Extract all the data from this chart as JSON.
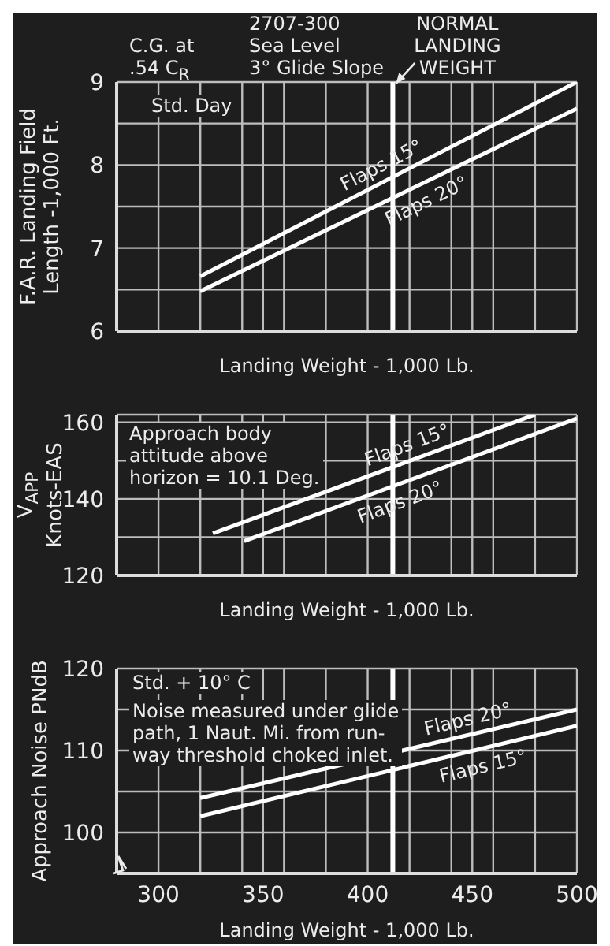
{
  "chart_data": [
    {
      "type": "line",
      "title": "2707-300\nSea Level\n3° Glide Slope",
      "xlabel": "Landing Weight - 1,000 Lb.",
      "ylabel": "F.A.R. Landing Field\nLength -1,000 Ft.",
      "annotations": [
        "C.G. at\n.54 C$_{R}$",
        "Std. Day"
      ],
      "xlim": [
        280,
        500
      ],
      "ylim": [
        6,
        9
      ],
      "xticks": [
        300,
        320,
        340,
        350,
        360,
        380,
        400,
        420,
        440,
        450,
        460,
        480,
        500
      ],
      "yticks": [
        6,
        {
          "value": 6.5,
          "label": null
        },
        7,
        {
          "value": 7.5,
          "label": null
        },
        8,
        {
          "value": 8.5,
          "label": null
        },
        9
      ],
      "tick_labels": "y",
      "grid": true,
      "legend": false,
      "ref_lines": [
        {
          "axis": "x",
          "value": 412,
          "label": "NORMAL\nLANDING\nWEIGHT",
          "color": "#ffffff"
        }
      ],
      "series": [
        {
          "name": "Flaps 15°",
          "color": "#ffffff",
          "x": [
            320,
            500
          ],
          "values": [
            6.66,
            9.0
          ]
        },
        {
          "name": "Flaps 20°",
          "color": "#ffffff",
          "x": [
            320,
            500
          ],
          "values": [
            6.48,
            8.68
          ]
        }
      ]
    },
    {
      "type": "line",
      "xlabel": "Landing Weight - 1,000 Lb.",
      "ylabel": "V$_{APP}$\nKnots-EAS",
      "annotations": [
        "Approach body\nattitude above\nhorizon = 10.1 Deg."
      ],
      "xlim": [
        280,
        500
      ],
      "ylim": [
        120,
        162
      ],
      "xticks": [
        300,
        320,
        340,
        350,
        360,
        380,
        400,
        420,
        440,
        450,
        460,
        480,
        500
      ],
      "yticks": [
        120,
        {
          "value": 130,
          "label": null
        },
        140,
        {
          "value": 150,
          "label": null
        },
        160
      ],
      "tick_labels": "y",
      "grid": true,
      "legend": false,
      "ref_lines": [
        {
          "axis": "x",
          "value": 412,
          "label": null,
          "color": "#ffffff"
        }
      ],
      "series": [
        {
          "name": "Flaps 15°",
          "color": "#ffffff",
          "x": [
            326,
            480
          ],
          "values": [
            131,
            162
          ]
        },
        {
          "name": "Flaps 20°",
          "color": "#ffffff",
          "x": [
            341,
            500
          ],
          "values": [
            129,
            161
          ]
        }
      ]
    },
    {
      "type": "line",
      "xlabel": "Landing Weight - 1,000 Lb.",
      "ylabel": "Approach Noise PNdB",
      "annotations": [
        "Std. + 10° C",
        "Noise measured under glide\npath, 1 Naut. Mi. from run-\nway threshold choked inlet."
      ],
      "xlim": [
        280,
        500
      ],
      "ylim": [
        95,
        120
      ],
      "xticks": [
        300,
        {
          "value": 320,
          "label": null
        },
        {
          "value": 340,
          "label": null
        },
        350,
        {
          "value": 360,
          "label": null
        },
        {
          "value": 380,
          "label": null
        },
        400,
        {
          "value": 420,
          "label": null
        },
        {
          "value": 440,
          "label": null
        },
        450,
        {
          "value": 460,
          "label": null
        },
        {
          "value": 480,
          "label": null
        },
        500
      ],
      "yticks": [
        100,
        {
          "value": 105,
          "label": null
        },
        110,
        {
          "value": 115,
          "label": null
        },
        120
      ],
      "grid": true,
      "legend": false,
      "ref_lines": [
        {
          "axis": "x",
          "value": 412,
          "label": null,
          "color": "#ffffff"
        }
      ],
      "series": [
        {
          "name": "Flaps 20°",
          "color": "#ffffff",
          "x": [
            320,
            500
          ],
          "values": [
            104.2,
            115
          ]
        },
        {
          "name": "Flaps 15°",
          "color": "#ffffff",
          "x": [
            320,
            500
          ],
          "values": [
            102,
            113
          ]
        }
      ]
    }
  ]
}
